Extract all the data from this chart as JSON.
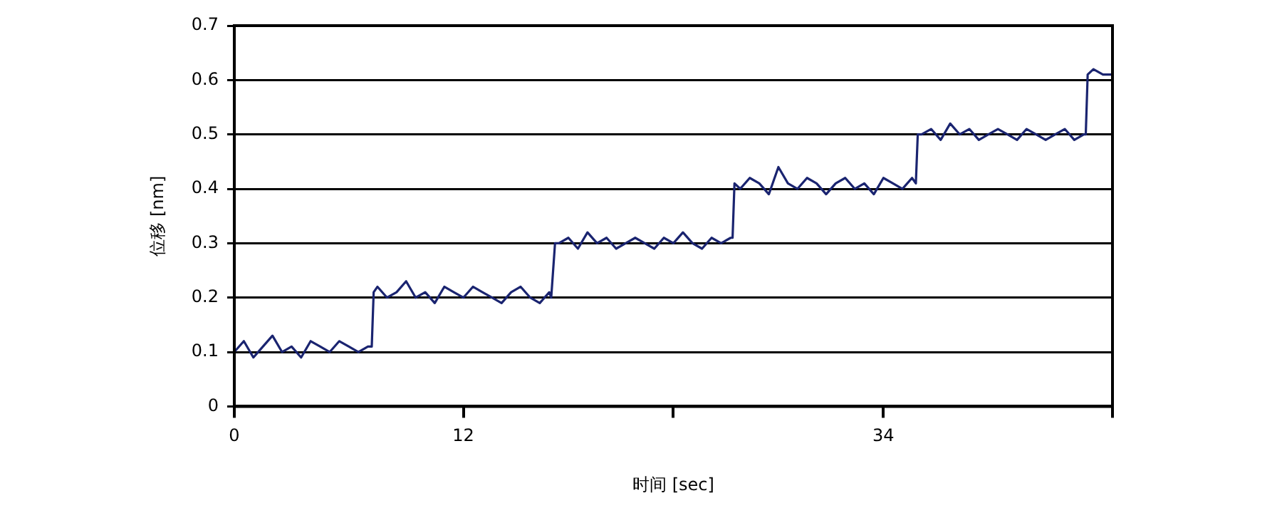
{
  "chart_data": {
    "type": "line",
    "xlabel": "时间 [sec]",
    "ylabel": "位移 [nm]",
    "xlim": [
      0,
      46
    ],
    "xticks": [
      0,
      12,
      {
        "value": 23,
        "label": null
      },
      34,
      {
        "value": 46,
        "label": null
      }
    ],
    "ylim": [
      0,
      0.7
    ],
    "yticks": [
      0,
      0.1,
      0.2,
      0.3,
      0.4,
      0.5,
      0.6,
      0.7
    ],
    "grid": "y",
    "marker": "none",
    "line_style": "solid",
    "legend": false,
    "series": [
      {
        "color": "#1a2470",
        "x": [
          0,
          0.5,
          1,
          1.5,
          2,
          2.5,
          3,
          3.5,
          4,
          4.5,
          5,
          5.5,
          6,
          6.5,
          7,
          7.2,
          7.3,
          7.5,
          8,
          8.5,
          9,
          9.5,
          10,
          10.5,
          11,
          11.5,
          12,
          12.5,
          13,
          13.5,
          14,
          14.5,
          15,
          15.5,
          16,
          16.5,
          16.6,
          16.8,
          17,
          17.5,
          18,
          18.5,
          19,
          19.5,
          20,
          20.5,
          21,
          21.5,
          22,
          22.5,
          23,
          23.5,
          24,
          24.5,
          25,
          25.5,
          26,
          26.1,
          26.2,
          26.5,
          27,
          27.5,
          28,
          28.5,
          29,
          29.5,
          30,
          30.5,
          31,
          31.5,
          32,
          32.5,
          33,
          33.5,
          34,
          34.5,
          35,
          35.5,
          35.7,
          35.8,
          36,
          36.5,
          37,
          37.5,
          38,
          38.5,
          39,
          39.5,
          40,
          40.5,
          41,
          41.5,
          42,
          42.5,
          43,
          43.5,
          44,
          44.5,
          44.6,
          44.7,
          45,
          45.5,
          46
        ],
        "values": [
          0.1,
          0.12,
          0.09,
          0.11,
          0.13,
          0.1,
          0.11,
          0.09,
          0.12,
          0.11,
          0.1,
          0.12,
          0.11,
          0.1,
          0.11,
          0.11,
          0.21,
          0.22,
          0.2,
          0.21,
          0.23,
          0.2,
          0.21,
          0.19,
          0.22,
          0.21,
          0.2,
          0.22,
          0.21,
          0.2,
          0.19,
          0.21,
          0.22,
          0.2,
          0.19,
          0.21,
          0.2,
          0.3,
          0.3,
          0.31,
          0.29,
          0.32,
          0.3,
          0.31,
          0.29,
          0.3,
          0.31,
          0.3,
          0.29,
          0.31,
          0.3,
          0.32,
          0.3,
          0.29,
          0.31,
          0.3,
          0.31,
          0.31,
          0.41,
          0.4,
          0.42,
          0.41,
          0.39,
          0.44,
          0.41,
          0.4,
          0.42,
          0.41,
          0.39,
          0.41,
          0.42,
          0.4,
          0.41,
          0.39,
          0.42,
          0.41,
          0.4,
          0.42,
          0.41,
          0.5,
          0.5,
          0.51,
          0.49,
          0.52,
          0.5,
          0.51,
          0.49,
          0.5,
          0.51,
          0.5,
          0.49,
          0.51,
          0.5,
          0.49,
          0.5,
          0.51,
          0.49,
          0.5,
          0.5,
          0.61,
          0.62,
          0.61,
          0.61
        ]
      }
    ]
  }
}
